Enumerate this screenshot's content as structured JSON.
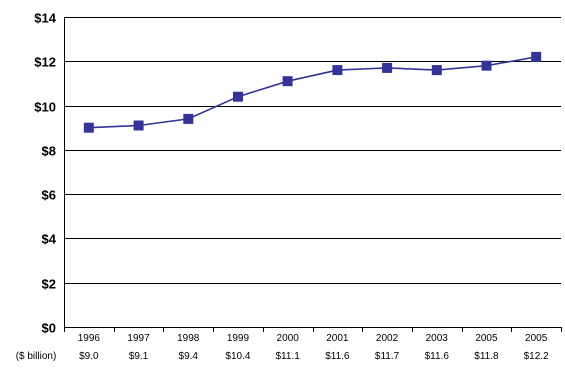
{
  "chart_data": {
    "type": "line",
    "categories": [
      "1996",
      "1997",
      "1998",
      "1999",
      "2000",
      "2001",
      "2002",
      "2003",
      "2005",
      "2005"
    ],
    "series": [
      {
        "values": [
          9.0,
          9.1,
          9.4,
          10.4,
          11.1,
          11.6,
          11.7,
          11.6,
          11.8,
          12.2
        ]
      }
    ],
    "value_row_label": "($ billion)",
    "value_labels": [
      "$9.0",
      "$9.1",
      "$9.4",
      "$10.4",
      "$11.1",
      "$11.6",
      "$11.7",
      "$11.6",
      "$11.8",
      "$12.2"
    ],
    "yticks": [
      0,
      2,
      4,
      6,
      8,
      10,
      12,
      14
    ],
    "ytick_labels": [
      "$0",
      "$2",
      "$4",
      "$6",
      "$8",
      "$10",
      "$12",
      "$14"
    ],
    "ylim": [
      0,
      14
    ],
    "grid": true,
    "line_color": "#333399",
    "marker_color": "#333399",
    "marker": "square"
  }
}
